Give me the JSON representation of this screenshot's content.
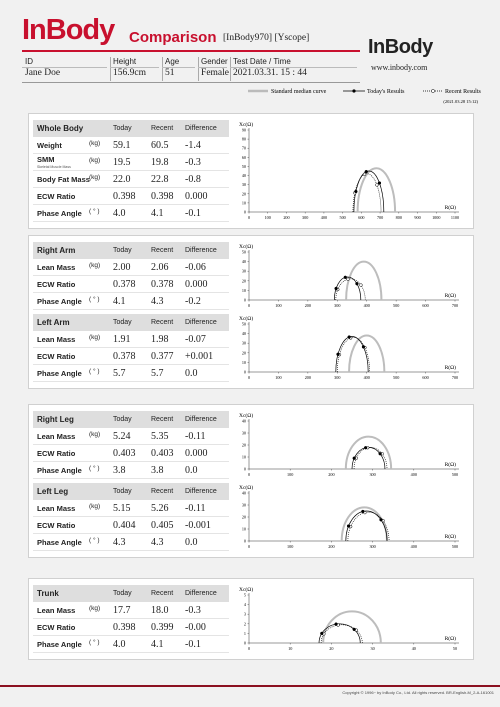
{
  "header": {
    "logo": "InBody",
    "title": "Comparison",
    "model": "[InBody970] [Yscope]",
    "brand": "InBody",
    "website": "www.inbody.com"
  },
  "info": {
    "labels": [
      "ID",
      "Height",
      "Age",
      "Gender",
      "Test Date / Time"
    ],
    "values": [
      "Jane Doe",
      "156.9cm",
      "51",
      "Female",
      "2021.03.31. 15 : 44"
    ]
  },
  "legend": {
    "standard": "Standard median curve",
    "today": "Today's Results",
    "recent": "Recent Results",
    "recent_date": "(2021.03.28 15:12)"
  },
  "panels": [
    {
      "sections": [
        {
          "title": "Whole Body",
          "columns": [
            "Today",
            "Recent",
            "Difference"
          ],
          "rows": [
            {
              "label": "Weight",
              "unit": "(kg)",
              "today": "59.1",
              "recent": "60.5",
              "difference": "-1.4"
            },
            {
              "label": "SMM",
              "sublabel": "Skeletal Muscle Mass",
              "unit": "(kg)",
              "today": "19.5",
              "recent": "19.8",
              "difference": "-0.3"
            },
            {
              "label": "Body Fat Mass",
              "unit": "(kg)",
              "today": "22.0",
              "recent": "22.8",
              "difference": "-0.8"
            },
            {
              "label": "ECW Ratio",
              "today": "0.398",
              "recent": "0.398",
              "difference": "0.000"
            },
            {
              "label": "Phase Angle",
              "unit": "( ° )",
              "today": "4.0",
              "recent": "4.1",
              "difference": "-0.1"
            }
          ],
          "chart": {
            "y_label": "Xc(Ω)",
            "x_label": "R(Ω)",
            "xlim": [
              0,
              1100
            ],
            "ylim": [
              0,
              90
            ],
            "xticks": [
              0,
              100,
              200,
              300,
              400,
              500,
              600,
              700,
              800,
              900,
              1000,
              1100
            ],
            "yticks": [
              0,
              10,
              20,
              30,
              40,
              50,
              60,
              70,
              80,
              90
            ]
          }
        }
      ]
    },
    {
      "sections": [
        {
          "title": "Right Arm",
          "columns": [
            "Today",
            "Recent",
            "Difference"
          ],
          "rows": [
            {
              "label": "Lean Mass",
              "unit": "(kg)",
              "today": "2.00",
              "recent": "2.06",
              "difference": "-0.06"
            },
            {
              "label": "ECW Ratio",
              "today": "0.378",
              "recent": "0.378",
              "difference": "0.000"
            },
            {
              "label": "Phase Angle",
              "unit": "( ° )",
              "today": "4.1",
              "recent": "4.3",
              "difference": "-0.2"
            }
          ],
          "chart": {
            "y_label": "Xc(Ω)",
            "x_label": "R(Ω)",
            "xlim": [
              0,
              700
            ],
            "ylim": [
              0,
              50
            ],
            "xticks": [
              0,
              100,
              200,
              300,
              400,
              500,
              600,
              700
            ],
            "yticks": [
              0,
              10,
              20,
              30,
              40,
              50
            ]
          }
        },
        {
          "title": "Left Arm",
          "columns": [
            "Today",
            "Recent",
            "Difference"
          ],
          "rows": [
            {
              "label": "Lean Mass",
              "unit": "(kg)",
              "today": "1.91",
              "recent": "1.98",
              "difference": "-0.07"
            },
            {
              "label": "ECW Ratio",
              "today": "0.378",
              "recent": "0.377",
              "difference": "+0.001"
            },
            {
              "label": "Phase Angle",
              "unit": "( ° )",
              "today": "5.7",
              "recent": "5.7",
              "difference": "0.0"
            }
          ],
          "chart": {
            "y_label": "Xc(Ω)",
            "x_label": "R(Ω)",
            "xlim": [
              0,
              700
            ],
            "ylim": [
              0,
              50
            ],
            "xticks": [
              0,
              100,
              200,
              300,
              400,
              500,
              600,
              700
            ],
            "yticks": [
              0,
              10,
              20,
              30,
              40,
              50
            ]
          }
        }
      ]
    },
    {
      "sections": [
        {
          "title": "Right Leg",
          "columns": [
            "Today",
            "Recent",
            "Difference"
          ],
          "rows": [
            {
              "label": "Lean Mass",
              "unit": "(kg)",
              "today": "5.24",
              "recent": "5.35",
              "difference": "-0.11"
            },
            {
              "label": "ECW Ratio",
              "today": "0.403",
              "recent": "0.403",
              "difference": "0.000"
            },
            {
              "label": "Phase Angle",
              "unit": "( ° )",
              "today": "3.8",
              "recent": "3.8",
              "difference": "0.0"
            }
          ],
          "chart": {
            "y_label": "Xc(Ω)",
            "x_label": "R(Ω)",
            "xlim": [
              0,
              500
            ],
            "ylim": [
              0,
              40
            ],
            "xticks": [
              0,
              100,
              200,
              300,
              400,
              500
            ],
            "yticks": [
              0,
              10,
              20,
              30,
              40
            ]
          }
        },
        {
          "title": "Left Leg",
          "columns": [
            "Today",
            "Recent",
            "Difference"
          ],
          "rows": [
            {
              "label": "Lean Mass",
              "unit": "(kg)",
              "today": "5.15",
              "recent": "5.26",
              "difference": "-0.11"
            },
            {
              "label": "ECW Ratio",
              "today": "0.404",
              "recent": "0.405",
              "difference": "-0.001"
            },
            {
              "label": "Phase Angle",
              "unit": "( ° )",
              "today": "4.3",
              "recent": "4.3",
              "difference": "0.0"
            }
          ],
          "chart": {
            "y_label": "Xc(Ω)",
            "x_label": "R(Ω)",
            "xlim": [
              0,
              500
            ],
            "ylim": [
              0,
              40
            ],
            "xticks": [
              0,
              100,
              200,
              300,
              400,
              500
            ],
            "yticks": [
              0,
              10,
              20,
              30,
              40
            ]
          }
        }
      ]
    },
    {
      "sections": [
        {
          "title": "Trunk",
          "columns": [
            "Today",
            "Recent",
            "Difference"
          ],
          "rows": [
            {
              "label": "Lean Mass",
              "unit": "(kg)",
              "today": "17.7",
              "recent": "18.0",
              "difference": "-0.3"
            },
            {
              "label": "ECW Ratio",
              "today": "0.398",
              "recent": "0.399",
              "difference": "-0.00"
            },
            {
              "label": "Phase Angle",
              "unit": "( ° )",
              "today": "4.0",
              "recent": "4.1",
              "difference": "-0.1"
            }
          ],
          "chart": {
            "y_label": "Xc(Ω)",
            "x_label": "R(Ω)",
            "xlim": [
              0,
              50
            ],
            "ylim": [
              0,
              5
            ],
            "xticks": [
              0,
              10,
              20,
              30,
              40,
              50
            ],
            "yticks": [
              0,
              1,
              2,
              3,
              4,
              5
            ]
          }
        }
      ]
    }
  ],
  "footer": {
    "copyright": "Copyright © 1996~ by InBody Co., Ltd. All rights reserved. BR-English-M_2-A-161001"
  }
}
